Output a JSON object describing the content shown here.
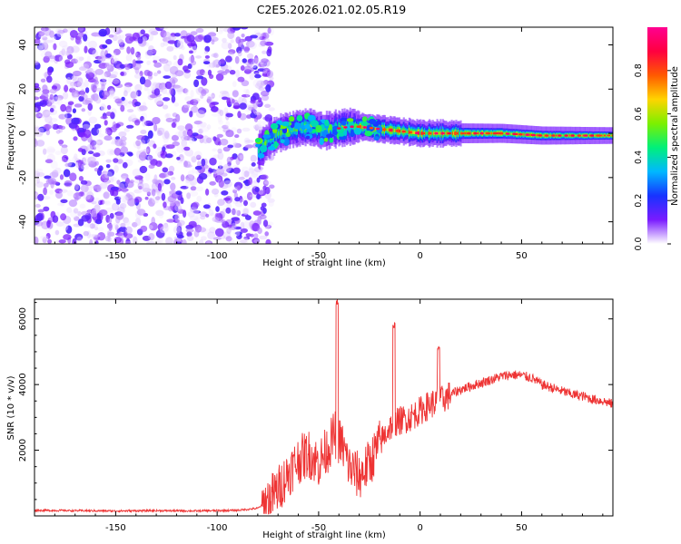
{
  "figure_title": "C2E5.2026.021.02.05.R19",
  "chart_data": [
    {
      "type": "heatmap",
      "name": "spectrogram",
      "xlabel": "Height of straight line (km)",
      "ylabel": "Frequency (Hz)",
      "xlim": [
        -190,
        95
      ],
      "ylim": [
        -50,
        48
      ],
      "xticks": [
        -150,
        -100,
        -50,
        0,
        50
      ],
      "yticks": [
        -40,
        -20,
        0,
        20,
        40
      ],
      "colorbar": {
        "label": "Normalized spectral amplitude",
        "range": [
          0,
          1
        ],
        "ticks": [
          0.0,
          0.2,
          0.4,
          0.6,
          0.8
        ]
      },
      "regions": [
        {
          "description": "broadband noise",
          "x_range": [
            -190,
            -73
          ],
          "freq_range": [
            -50,
            48
          ]
        },
        {
          "description": "signal track",
          "x_range": [
            -80,
            95
          ],
          "center_freq": 0
        }
      ],
      "signal_center": [
        [
          -80,
          -8
        ],
        [
          -75,
          -3
        ],
        [
          -70,
          0
        ],
        [
          -62,
          2
        ],
        [
          -55,
          3
        ],
        [
          -48,
          1
        ],
        [
          -42,
          2
        ],
        [
          -35,
          3
        ],
        [
          -30,
          3
        ],
        [
          -20,
          2
        ],
        [
          -10,
          1
        ],
        [
          0,
          0
        ],
        [
          10,
          0
        ],
        [
          20,
          0
        ],
        [
          40,
          0
        ],
        [
          60,
          -1
        ],
        [
          80,
          -1
        ],
        [
          95,
          -1
        ]
      ]
    },
    {
      "type": "line",
      "name": "snr",
      "xlabel": "Height of straight line (km)",
      "ylabel": "SNR (10 * v/v)",
      "xlim": [
        -190,
        95
      ],
      "ylim": [
        0,
        6600
      ],
      "xticks": [
        -150,
        -100,
        -50,
        0,
        50
      ],
      "yticks": [
        2000,
        4000,
        6000
      ],
      "color": "#ee3333",
      "series": [
        {
          "name": "SNR",
          "x": [
            -190,
            -170,
            -150,
            -130,
            -110,
            -90,
            -80,
            -75,
            -70,
            -65,
            -60,
            -55,
            -50,
            -45,
            -42,
            -38,
            -35,
            -30,
            -25,
            -20,
            -15,
            -10,
            -5,
            0,
            5,
            10,
            15,
            20,
            25,
            30,
            35,
            40,
            45,
            50,
            55,
            60,
            65,
            70,
            75,
            80,
            85,
            90,
            95
          ],
          "y": [
            170,
            160,
            150,
            160,
            150,
            170,
            230,
            450,
            800,
            1300,
            1700,
            1900,
            1600,
            2100,
            2500,
            2100,
            1500,
            1200,
            1600,
            2200,
            2700,
            2900,
            3000,
            3200,
            3400,
            3500,
            3700,
            3850,
            3950,
            4050,
            4150,
            4250,
            4300,
            4280,
            4200,
            4000,
            3900,
            3800,
            3700,
            3650,
            3550,
            3500,
            3400
          ]
        }
      ],
      "annotations": [
        {
          "x": -41,
          "y": 6600,
          "text": "spike"
        },
        {
          "x": -13,
          "y": 5900,
          "text": "spike"
        },
        {
          "x": 9,
          "y": 5200,
          "text": "spike"
        }
      ]
    }
  ],
  "colors": {
    "colormap": [
      "#ffffff",
      "#7a1bff",
      "#1733ff",
      "#00b8ff",
      "#00f07a",
      "#7cf000",
      "#ffd400",
      "#ff5a00",
      "#ff0040",
      "#ff0090"
    ],
    "line": "#ee3333",
    "axis": "#000000"
  }
}
